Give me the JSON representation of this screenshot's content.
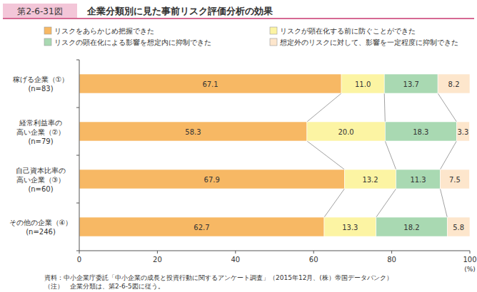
{
  "chart_data": {
    "type": "bar",
    "orientation": "horizontal",
    "stacked": true,
    "data_labels": true,
    "legend": "top",
    "grid": false,
    "subtitle": "第2-6-31図",
    "title": "企業分類別に見た事前リスク評価分析の効果",
    "x_label": "(%)",
    "categories": [
      "稼げる企業（①）\n(n=83)",
      "経常利益率の\n高い企業（②）\n(n=79)",
      "自己資本比率の\n高い企業（③）\n(n=60)",
      "その他の企業（④）\n(n=246)"
    ],
    "series": [
      {
        "name": "リスクをあらかじめ把握できた",
        "color": "#f7b864",
        "values": [
          67.1,
          58.3,
          67.9,
          62.7
        ]
      },
      {
        "name": "リスクが顕在化する前に防ぐことができた",
        "color": "#fcf4a3",
        "values": [
          11.0,
          20.0,
          13.2,
          13.3
        ],
        "value_labels": [
          "11.0",
          "20.0",
          "13.2",
          "13.3"
        ]
      },
      {
        "name": "リスクの顕在化による影響を想定内に抑制できた",
        "color": "#a9d9b2",
        "values": [
          13.7,
          18.3,
          11.3,
          18.2
        ]
      },
      {
        "name": "想定外のリスクに対して、影響を一定程度に抑制できた",
        "color": "#fde6cc",
        "values": [
          8.2,
          3.3,
          7.5,
          5.8
        ]
      }
    ],
    "xlim": [
      0,
      100
    ],
    "xticks": [
      0,
      20,
      40,
      60,
      80,
      100
    ],
    "annotations": [
      "資料：中小企業庁委託「中小企業の成長と投資行動に関するアンケート調査」（2015年12月、(株）帝国データバンク）",
      "（注）　企業分類は、第2-6-5図に従う。"
    ]
  }
}
